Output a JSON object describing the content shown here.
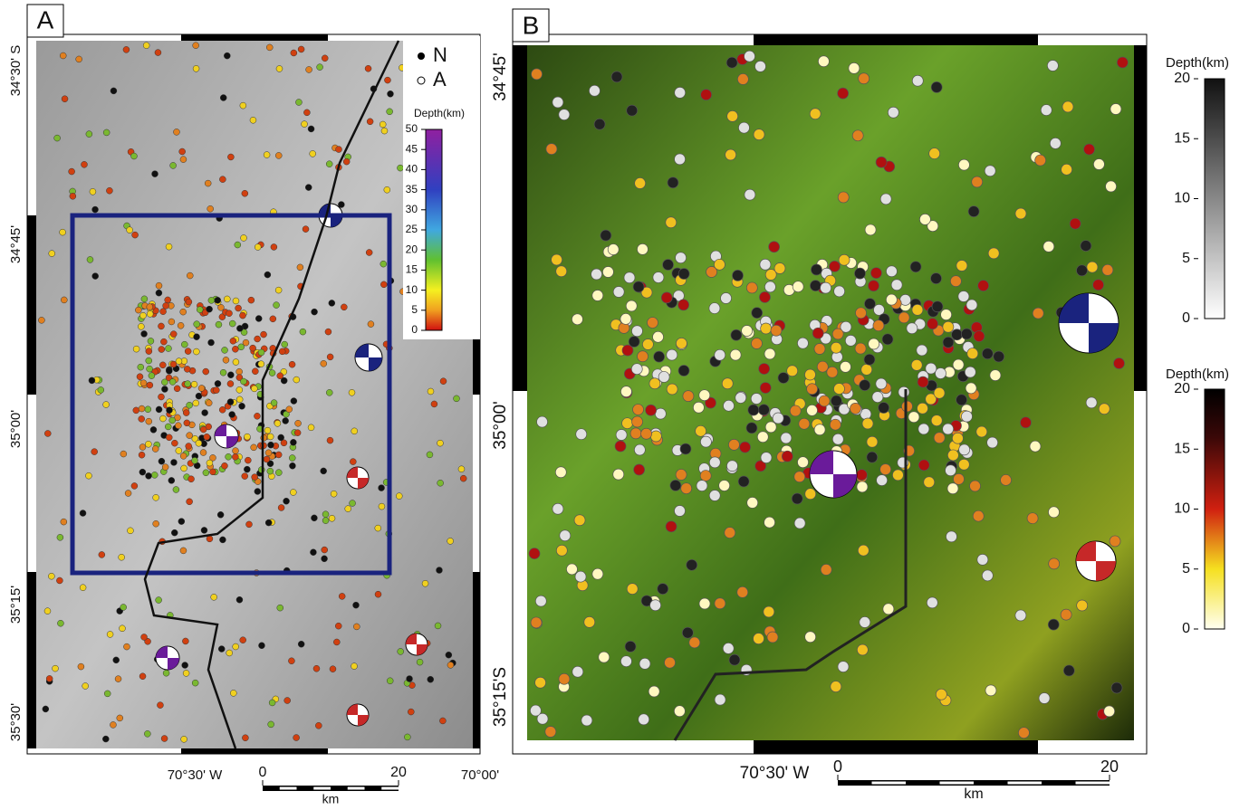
{
  "panel_a": {
    "label": "A",
    "lat_labels": [
      "34°30' S",
      "34°45'",
      "35°00'",
      "35°15'",
      "35°30'"
    ],
    "lon_labels": [
      "70°30' W",
      "70°00'"
    ],
    "legend": [
      "N",
      "A"
    ],
    "colorbar": {
      "title": "Depth(km)",
      "ticks": [
        0,
        5,
        10,
        15,
        20,
        25,
        30,
        35,
        40,
        45,
        50
      ]
    },
    "scalebar": {
      "ticks": [
        0,
        20
      ],
      "unit": "km"
    }
  },
  "panel_b": {
    "label": "B",
    "lat_labels": [
      "34°45'",
      "35°00'",
      "35°15'S"
    ],
    "lon_labels": [
      "70°30' W"
    ],
    "colorbar_gray": {
      "title": "Depth(km)",
      "ticks": [
        0,
        5,
        10,
        15,
        20
      ]
    },
    "colorbar_heat": {
      "title": "Depth(km)",
      "ticks": [
        0,
        5,
        10,
        15,
        20
      ]
    },
    "scalebar": {
      "ticks": [
        0,
        20
      ],
      "unit": "km"
    }
  }
}
